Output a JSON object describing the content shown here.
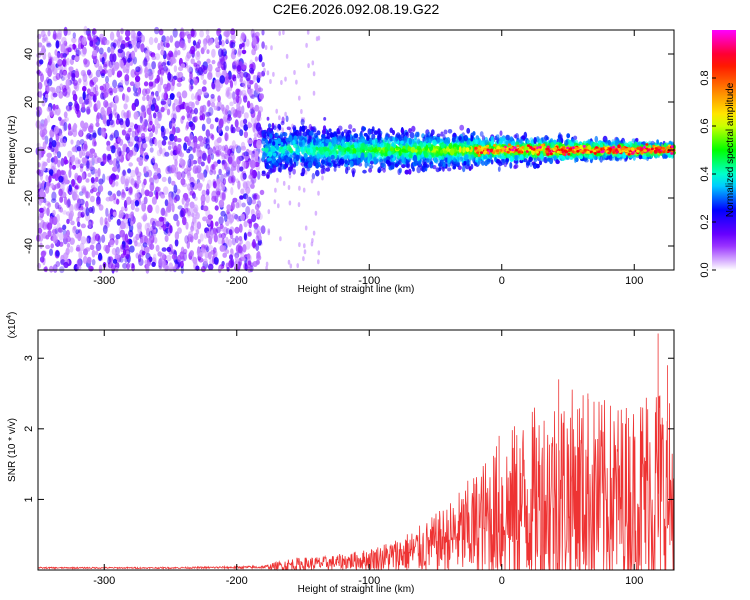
{
  "title": "C2E6.2026.092.08.19.G22",
  "chart_data": [
    {
      "type": "heatmap",
      "name": "spectrogram",
      "xlabel": "Height of straight line (km)",
      "ylabel": "Frequency (Hz)",
      "xlim": [
        -350,
        130
      ],
      "ylim": [
        -50,
        50
      ],
      "xticks": [
        -300,
        -200,
        -100,
        0,
        100
      ],
      "yticks": [
        -40,
        -20,
        0,
        20,
        40
      ],
      "noise_region_x": [
        -350,
        -180
      ],
      "signal_region_x": [
        -180,
        130
      ],
      "colorbar": {
        "label": "Normalized spectral amplitude",
        "range": [
          0.0,
          1.0
        ],
        "ticks": [
          0.0,
          0.2,
          0.4,
          0.6,
          0.8
        ],
        "tick_labels": [
          "0.0",
          "0.2",
          "0.4",
          "0.6",
          "0.8"
        ],
        "colors": [
          "#ffffff",
          "#8000ff",
          "#0000ff",
          "#00ffff",
          "#00ff00",
          "#ffff00",
          "#ff8000",
          "#ff0000",
          "#ff00ff"
        ]
      }
    },
    {
      "type": "line",
      "name": "snr",
      "xlabel": "Height of straight line (km)",
      "ylabel": "SNR (10 * v/v)",
      "y_multiplier": "(x10",
      "y_multiplier_exp": "4",
      "y_multiplier_close": ")",
      "xlim": [
        -350,
        130
      ],
      "ylim": [
        0,
        3.4
      ],
      "xticks": [
        -300,
        -200,
        -100,
        0,
        100
      ],
      "yticks": [
        1,
        2,
        3
      ],
      "color": "#ee3333",
      "envelope": [
        {
          "x": -350,
          "mean": 0.03,
          "amp": 0.01
        },
        {
          "x": -250,
          "mean": 0.03,
          "amp": 0.01
        },
        {
          "x": -180,
          "mean": 0.04,
          "amp": 0.02
        },
        {
          "x": -160,
          "mean": 0.07,
          "amp": 0.1
        },
        {
          "x": -130,
          "mean": 0.1,
          "amp": 0.1
        },
        {
          "x": -100,
          "mean": 0.15,
          "amp": 0.15
        },
        {
          "x": -80,
          "mean": 0.2,
          "amp": 0.25
        },
        {
          "x": -60,
          "mean": 0.3,
          "amp": 0.35
        },
        {
          "x": -40,
          "mean": 0.45,
          "amp": 0.5
        },
        {
          "x": -20,
          "mean": 0.6,
          "amp": 0.8
        },
        {
          "x": 0,
          "mean": 0.8,
          "amp": 1.1
        },
        {
          "x": 20,
          "mean": 0.95,
          "amp": 1.3
        },
        {
          "x": 40,
          "mean": 1.05,
          "amp": 1.5
        },
        {
          "x": 60,
          "mean": 1.1,
          "amp": 1.5
        },
        {
          "x": 80,
          "mean": 1.0,
          "amp": 1.4
        },
        {
          "x": 100,
          "mean": 1.0,
          "amp": 1.4
        },
        {
          "x": 115,
          "mean": 1.1,
          "amp": 1.8
        },
        {
          "x": 130,
          "mean": 1.0,
          "amp": 1.3
        }
      ],
      "peaks": [
        {
          "x": 118,
          "y": 3.35
        },
        {
          "x": 43,
          "y": 2.7
        },
        {
          "x": 65,
          "y": 2.5
        },
        {
          "x": 125,
          "y": 2.9
        },
        {
          "x": -2,
          "y": 1.9
        }
      ]
    }
  ]
}
